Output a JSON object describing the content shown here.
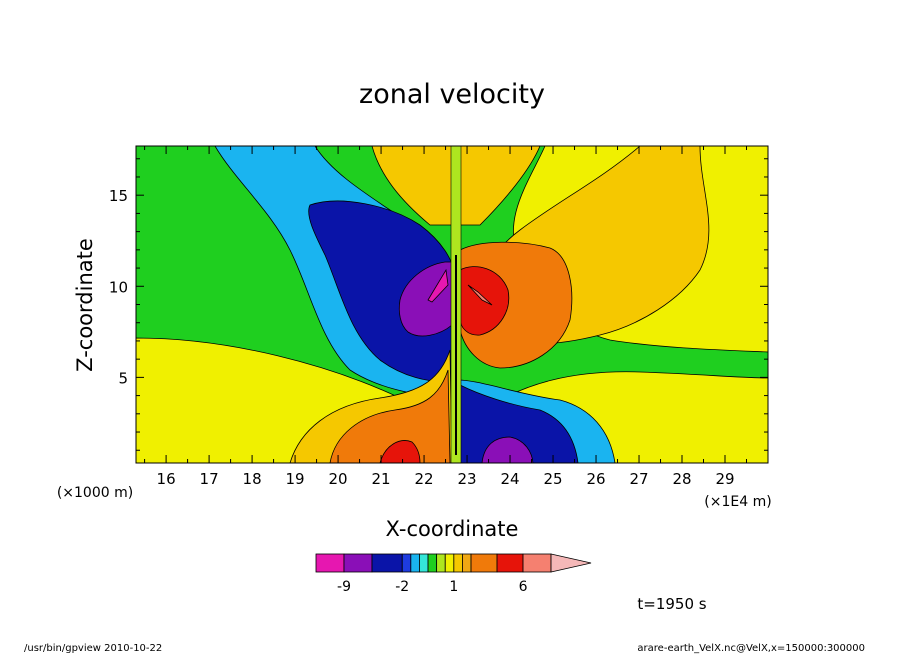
{
  "chart_data": {
    "type": "heatmap",
    "title": "zonal velocity",
    "xlabel": "X-coordinate",
    "ylabel": "Z-coordinate",
    "x_scale_label": "(×1E4 m)",
    "y_scale_label": "(×1000 m)",
    "xlim": [
      15.3,
      30.0
    ],
    "ylim": [
      0.3,
      17.7
    ],
    "x_ticks": [
      "16",
      "17",
      "18",
      "19",
      "20",
      "21",
      "22",
      "23",
      "24",
      "25",
      "26",
      "27",
      "28",
      "29"
    ],
    "y_ticks": [
      "5",
      "10",
      "15"
    ],
    "colorbar": {
      "levels": [
        -12,
        -9,
        -6,
        -2,
        -1.5,
        -1,
        -0.5,
        0,
        0.5,
        1,
        1.5,
        2,
        4,
        6,
        9,
        12
      ],
      "colors": [
        "#e617b0",
        "#8a0fb7",
        "#0a14a8",
        "#1e3ce0",
        "#1ab4f0",
        "#34e6d8",
        "#1fcf1f",
        "#aee61f",
        "#f0f000",
        "#f5c800",
        "#f0a814",
        "#f07a0a",
        "#e6140a",
        "#f58070"
      ],
      "overflow_color": "#f5b8b8",
      "labels": [
        {
          "value": -9,
          "text": "-9"
        },
        {
          "value": -2,
          "text": "-2"
        },
        {
          "value": 1,
          "text": "1"
        },
        {
          "value": 6,
          "text": "6"
        }
      ]
    },
    "time_label": "t=1950 s"
  },
  "footer": {
    "left": "/usr/bin/gpview   2010-10-22",
    "right": "arare-earth_VelX.nc@VelX,x=150000:300000"
  }
}
